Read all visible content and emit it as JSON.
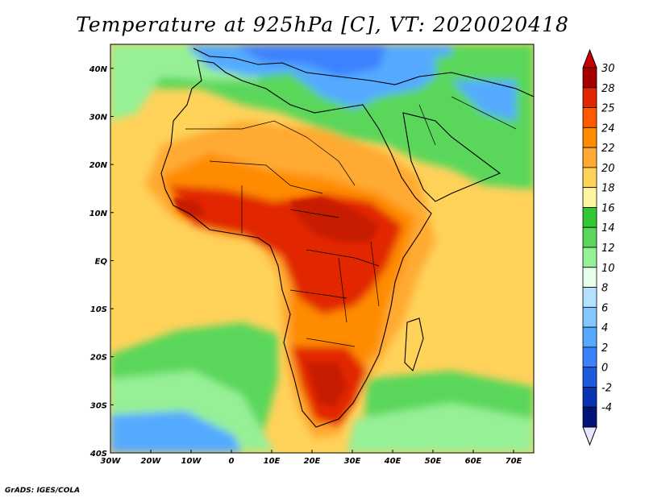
{
  "title": "Temperature at 925hPa [C], VT: 2020020418",
  "footer": "GrADS: IGES/COLA",
  "map": {
    "lon_range": [
      -30,
      75
    ],
    "lat_range": [
      -40,
      45
    ],
    "lat_ticks": [
      {
        "value": 40,
        "label": "40N"
      },
      {
        "value": 30,
        "label": "30N"
      },
      {
        "value": 20,
        "label": "20N"
      },
      {
        "value": 10,
        "label": "10N"
      },
      {
        "value": 0,
        "label": "EQ"
      },
      {
        "value": -10,
        "label": "10S"
      },
      {
        "value": -20,
        "label": "20S"
      },
      {
        "value": -30,
        "label": "30S"
      },
      {
        "value": -40,
        "label": "40S"
      }
    ],
    "lon_ticks": [
      {
        "value": -30,
        "label": "30W"
      },
      {
        "value": -20,
        "label": "20W"
      },
      {
        "value": -10,
        "label": "10W"
      },
      {
        "value": 0,
        "label": "0"
      },
      {
        "value": 10,
        "label": "10E"
      },
      {
        "value": 20,
        "label": "20E"
      },
      {
        "value": 30,
        "label": "30E"
      },
      {
        "value": 40,
        "label": "40E"
      },
      {
        "value": 50,
        "label": "50E"
      },
      {
        "value": 60,
        "label": "60E"
      },
      {
        "value": 70,
        "label": "70E"
      }
    ]
  },
  "colorbar": {
    "levels": [
      {
        "label": "30",
        "color": "#a50000"
      },
      {
        "label": "28",
        "color": "#e12600"
      },
      {
        "label": "25",
        "color": "#ff5a00"
      },
      {
        "label": "24",
        "color": "#ff8c00"
      },
      {
        "label": "22",
        "color": "#ffaa32"
      },
      {
        "label": "20",
        "color": "#ffd25a"
      },
      {
        "label": "18",
        "color": "#fff5a0"
      },
      {
        "label": "16",
        "color": "#32c832"
      },
      {
        "label": "14",
        "color": "#5ad75a"
      },
      {
        "label": "12",
        "color": "#96f096"
      },
      {
        "label": "10",
        "color": "#e6ffeb"
      },
      {
        "label": "8",
        "color": "#b4e1ff"
      },
      {
        "label": "6",
        "color": "#82c8ff"
      },
      {
        "label": "4",
        "color": "#55aaff"
      },
      {
        "label": "2",
        "color": "#3c82ff"
      },
      {
        "label": "0",
        "color": "#1e5adc"
      },
      {
        "label": "-2",
        "color": "#0a32b4"
      },
      {
        "label": "-4",
        "color": "#001478"
      }
    ],
    "top_arrow_color": "#c80000",
    "bottom_arrow_color": "#e6e6ff"
  },
  "colors": {
    "ocean_cold": "#3c82ff",
    "ocean_cool": "#96f096",
    "ocean_mild": "#5ad75a",
    "ocean_warm": "#ffd25a",
    "land_hot": "#e12600",
    "land_very_hot": "#c81e00",
    "land_warm": "#ff8c00",
    "land_mild": "#ffaa32",
    "land_cool": "#5ad75a",
    "land_cold": "#55aaff",
    "coastline": "#000000"
  }
}
